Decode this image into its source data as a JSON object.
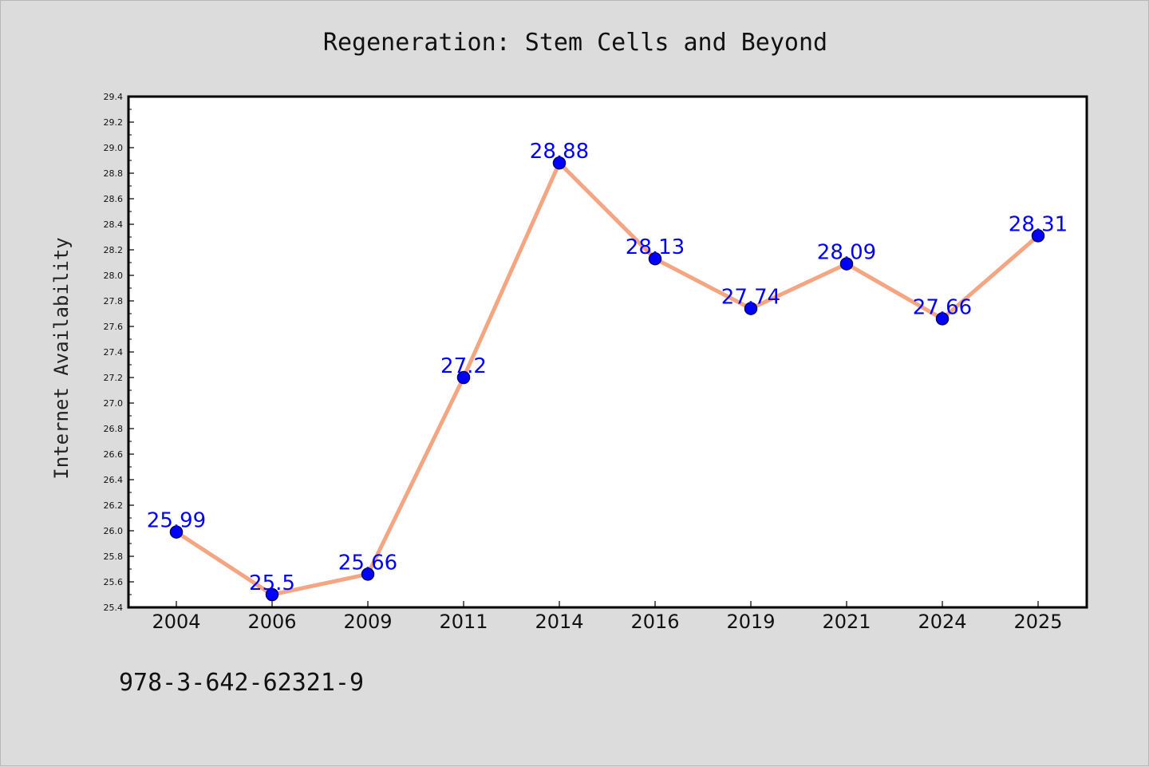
{
  "chart_data": {
    "type": "line",
    "title": "Regeneration: Stem Cells and Beyond",
    "xlabel": "",
    "ylabel": "Internet Availability",
    "categories": [
      "2004",
      "2006",
      "2009",
      "2011",
      "2014",
      "2016",
      "2019",
      "2021",
      "2024",
      "2025"
    ],
    "series": [
      {
        "values": [
          25.99,
          25.5,
          25.66,
          27.2,
          28.88,
          28.13,
          27.74,
          28.09,
          27.66,
          28.31
        ]
      }
    ],
    "data_labels": [
      "25.99",
      "25.5",
      "25.66",
      "27.2",
      "28.88",
      "28.13",
      "27.74",
      "28.09",
      "27.66",
      "28.31"
    ],
    "ylim": [
      25.4,
      29.4
    ],
    "yticks": [
      "25.4",
      "25.6",
      "25.8",
      "26.0",
      "26.2",
      "26.4",
      "26.6",
      "26.8",
      "27.0",
      "27.2",
      "27.4",
      "27.6",
      "27.8",
      "28.0",
      "28.2",
      "28.4",
      "28.6",
      "28.8",
      "29.0",
      "29.2",
      "29.4"
    ],
    "grid": false,
    "legend": "none",
    "colors": {
      "line": "#f4a582",
      "marker": "#0000ff",
      "marker_edge": "#000066",
      "data_label": "#0000ff",
      "plot_background": "#ffffff",
      "figure_background": "#dcdcdc"
    }
  },
  "footer": {
    "text": "978-3-642-62321-9"
  }
}
